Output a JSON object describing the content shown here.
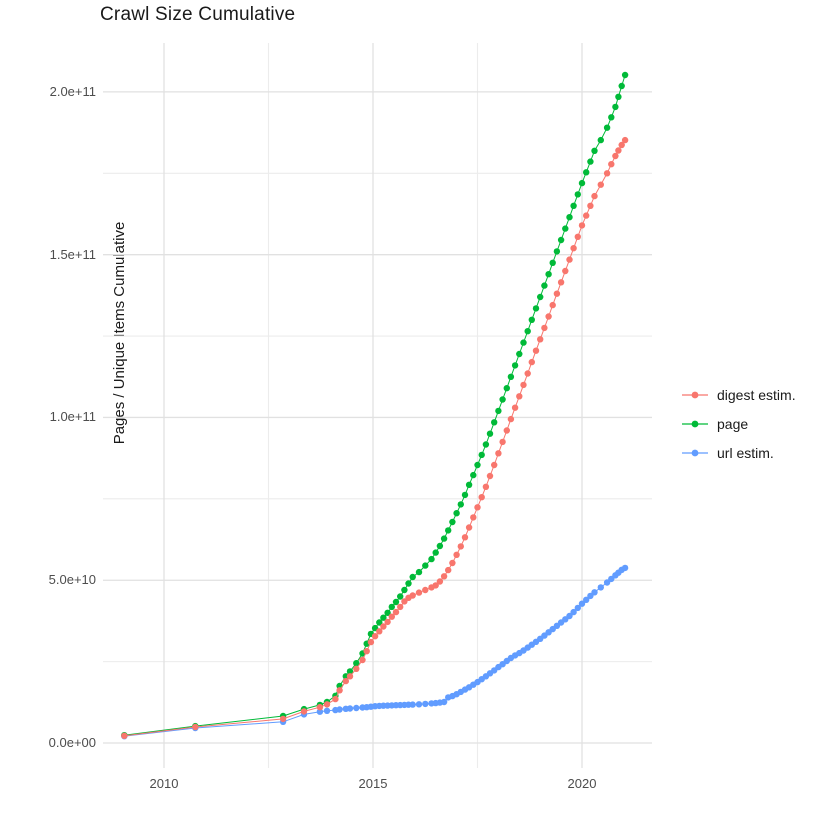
{
  "chart_data": {
    "type": "line",
    "title": "Crawl Size Cumulative",
    "xlabel": "",
    "ylabel": "Pages / Unique Items Cumulative",
    "grid": true,
    "legend_position": "right",
    "x_axis": {
      "tick_labels": [
        "2010",
        "2015",
        "2020"
      ],
      "major_ticks": [
        2010,
        2015,
        2020
      ],
      "minor_ticks": [
        2012.5,
        2017.5
      ],
      "range": [
        2008.5,
        2021.7
      ]
    },
    "y_axis": {
      "tick_labels": [
        "0.0e+00",
        "5.0e+10",
        "1.0e+11",
        "1.5e+11",
        "2.0e+11"
      ],
      "major_ticks_billions": [
        0,
        50,
        100,
        150,
        200
      ],
      "minor_ticks_billions": [
        25,
        75,
        125,
        175
      ],
      "range_billions": [
        -8,
        215
      ]
    },
    "units_note": "values_billions are y-values in units of 1e9 pages/items",
    "x": [
      2009.05,
      2010.75,
      2012.85,
      2013.35,
      2013.73,
      2013.9,
      2014.1,
      2014.2,
      2014.35,
      2014.45,
      2014.6,
      2014.75,
      2014.85,
      2014.95,
      2015.05,
      2015.15,
      2015.25,
      2015.35,
      2015.45,
      2015.55,
      2015.65,
      2015.75,
      2015.85,
      2015.95,
      2016.1,
      2016.25,
      2016.4,
      2016.5,
      2016.6,
      2016.7,
      2016.8,
      2016.9,
      2017.0,
      2017.1,
      2017.2,
      2017.3,
      2017.4,
      2017.5,
      2017.6,
      2017.7,
      2017.8,
      2017.9,
      2018.0,
      2018.1,
      2018.2,
      2018.3,
      2018.4,
      2018.5,
      2018.6,
      2018.7,
      2018.8,
      2018.9,
      2019.0,
      2019.1,
      2019.2,
      2019.3,
      2019.4,
      2019.5,
      2019.6,
      2019.7,
      2019.8,
      2019.9,
      2020.0,
      2020.1,
      2020.2,
      2020.3,
      2020.45,
      2020.6,
      2020.7,
      2020.8,
      2020.87,
      2020.95,
      2021.03
    ],
    "series": [
      {
        "name": "digest estim.",
        "color": "#F8766D",
        "values_billions": [
          2.2,
          4.9,
          7.4,
          9.7,
          11.0,
          11.9,
          13.5,
          16.2,
          19.0,
          20.5,
          22.8,
          25.5,
          28.2,
          31.0,
          32.8,
          34.3,
          35.8,
          37.2,
          38.8,
          40.2,
          41.8,
          43.5,
          44.6,
          45.3,
          46.2,
          47.0,
          47.8,
          48.4,
          49.6,
          51.2,
          53.1,
          55.3,
          57.8,
          60.4,
          63.2,
          66.2,
          69.3,
          72.4,
          75.5,
          78.7,
          82.0,
          85.4,
          89.0,
          92.5,
          96.0,
          99.5,
          103.0,
          106.5,
          110.0,
          113.5,
          117.0,
          120.5,
          124.0,
          127.5,
          131.0,
          134.5,
          138.0,
          141.5,
          145.0,
          148.5,
          152.0,
          155.5,
          159.0,
          162.0,
          165.0,
          168.0,
          171.5,
          175.0,
          177.8,
          180.3,
          182.0,
          183.7,
          185.2
        ]
      },
      {
        "name": "page",
        "color": "#00BA38",
        "values_billions": [
          2.4,
          5.2,
          8.3,
          10.4,
          11.7,
          12.6,
          14.5,
          17.5,
          20.5,
          22.0,
          24.5,
          27.5,
          30.5,
          33.5,
          35.3,
          37.0,
          38.5,
          40.0,
          41.8,
          43.3,
          45.0,
          47.0,
          49.0,
          51.0,
          52.5,
          54.5,
          56.5,
          58.5,
          60.5,
          62.8,
          65.3,
          67.9,
          70.6,
          73.3,
          76.2,
          79.3,
          82.3,
          85.4,
          88.5,
          91.7,
          95.0,
          98.5,
          102.0,
          105.5,
          109.0,
          112.5,
          116.0,
          119.5,
          123.0,
          126.5,
          130.0,
          133.5,
          137.0,
          140.5,
          144.0,
          147.5,
          151.0,
          154.5,
          158.0,
          161.5,
          165.0,
          168.5,
          172.0,
          175.3,
          178.6,
          181.9,
          185.2,
          189.0,
          192.2,
          195.4,
          198.5,
          201.8,
          205.2
        ]
      },
      {
        "name": "url estim.",
        "color": "#619CFF",
        "values_billions": [
          2.1,
          4.6,
          6.5,
          8.8,
          9.6,
          9.9,
          10.1,
          10.3,
          10.5,
          10.6,
          10.75,
          10.9,
          11.0,
          11.15,
          11.3,
          11.4,
          11.45,
          11.5,
          11.55,
          11.6,
          11.65,
          11.7,
          11.75,
          11.8,
          11.9,
          12.0,
          12.15,
          12.25,
          12.4,
          12.6,
          14.0,
          14.4,
          15.0,
          15.7,
          16.4,
          17.1,
          17.9,
          18.7,
          19.6,
          20.5,
          21.4,
          22.3,
          23.3,
          24.2,
          25.2,
          26.1,
          26.9,
          27.6,
          28.4,
          29.3,
          30.2,
          31.1,
          32.0,
          33.0,
          34.0,
          35.0,
          36.0,
          37.0,
          38.0,
          39.0,
          40.2,
          41.5,
          42.8,
          44.0,
          45.2,
          46.3,
          47.8,
          49.3,
          50.4,
          51.5,
          52.3,
          53.2,
          53.8
        ]
      }
    ]
  }
}
